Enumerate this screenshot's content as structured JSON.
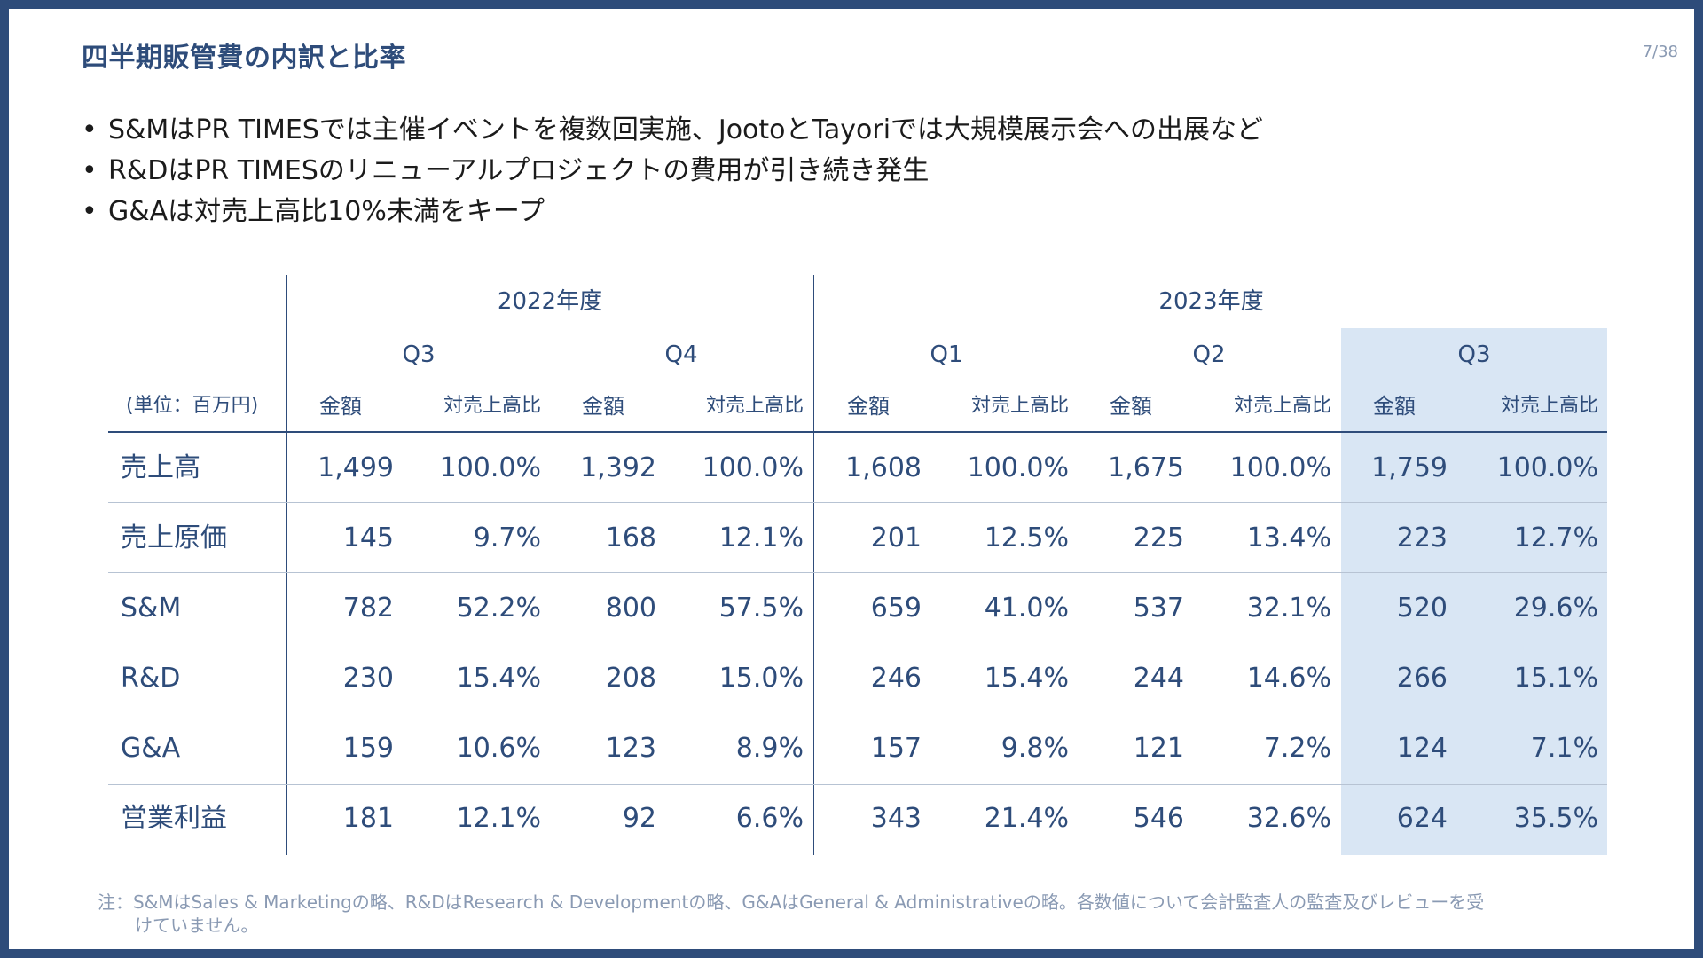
{
  "page": {
    "title": "四半期販管費の内訳と比率",
    "page_number": "7/38"
  },
  "bullets": [
    "S&MはPR TIMESでは主催イベントを複数回実施、JootoとTayoriでは大規模展示会への出展など",
    "R&DはPR TIMESのリニューアルプロジェクトの費用が引き続き発生",
    "G&Aは対売上高比10%未満をキープ"
  ],
  "bullet_char": "•",
  "table": {
    "unit": "(単位：百万円)",
    "years": [
      "2022年度",
      "2023年度"
    ],
    "quarters": [
      "Q3",
      "Q4",
      "Q1",
      "Q2",
      "Q3"
    ],
    "amount_label": "金額",
    "ratio_label": "対売上高比",
    "highlight_color": "#d9e6f4",
    "rows": [
      {
        "label": "売上高",
        "values": [
          "1,499",
          "100.0%",
          "1,392",
          "100.0%",
          "1,608",
          "100.0%",
          "1,675",
          "100.0%",
          "1,759",
          "100.0%"
        ]
      },
      {
        "label": "売上原価",
        "values": [
          "145",
          "9.7%",
          "168",
          "12.1%",
          "201",
          "12.5%",
          "225",
          "13.4%",
          "223",
          "12.7%"
        ]
      },
      {
        "label": "S&M",
        "values": [
          "782",
          "52.2%",
          "800",
          "57.5%",
          "659",
          "41.0%",
          "537",
          "32.1%",
          "520",
          "29.6%"
        ]
      },
      {
        "label": "R&D",
        "values": [
          "230",
          "15.4%",
          "208",
          "15.0%",
          "246",
          "15.4%",
          "244",
          "14.6%",
          "266",
          "15.1%"
        ]
      },
      {
        "label": "G&A",
        "values": [
          "159",
          "10.6%",
          "123",
          "8.9%",
          "157",
          "9.8%",
          "121",
          "7.2%",
          "124",
          "7.1%"
        ]
      },
      {
        "label": "営業利益",
        "values": [
          "181",
          "12.1%",
          "92",
          "6.6%",
          "343",
          "21.4%",
          "546",
          "32.6%",
          "624",
          "35.5%"
        ]
      }
    ]
  },
  "note_line1": "注：S&MはSales & Marketingの略、R&DはResearch & Developmentの略、G&AはGeneral & Administrativeの略。各数値について会計監査人の監査及びレビューを受",
  "note_line2": "けていません。",
  "colors": {
    "accent": "#2e4c7a",
    "muted": "#8a9ab3"
  }
}
